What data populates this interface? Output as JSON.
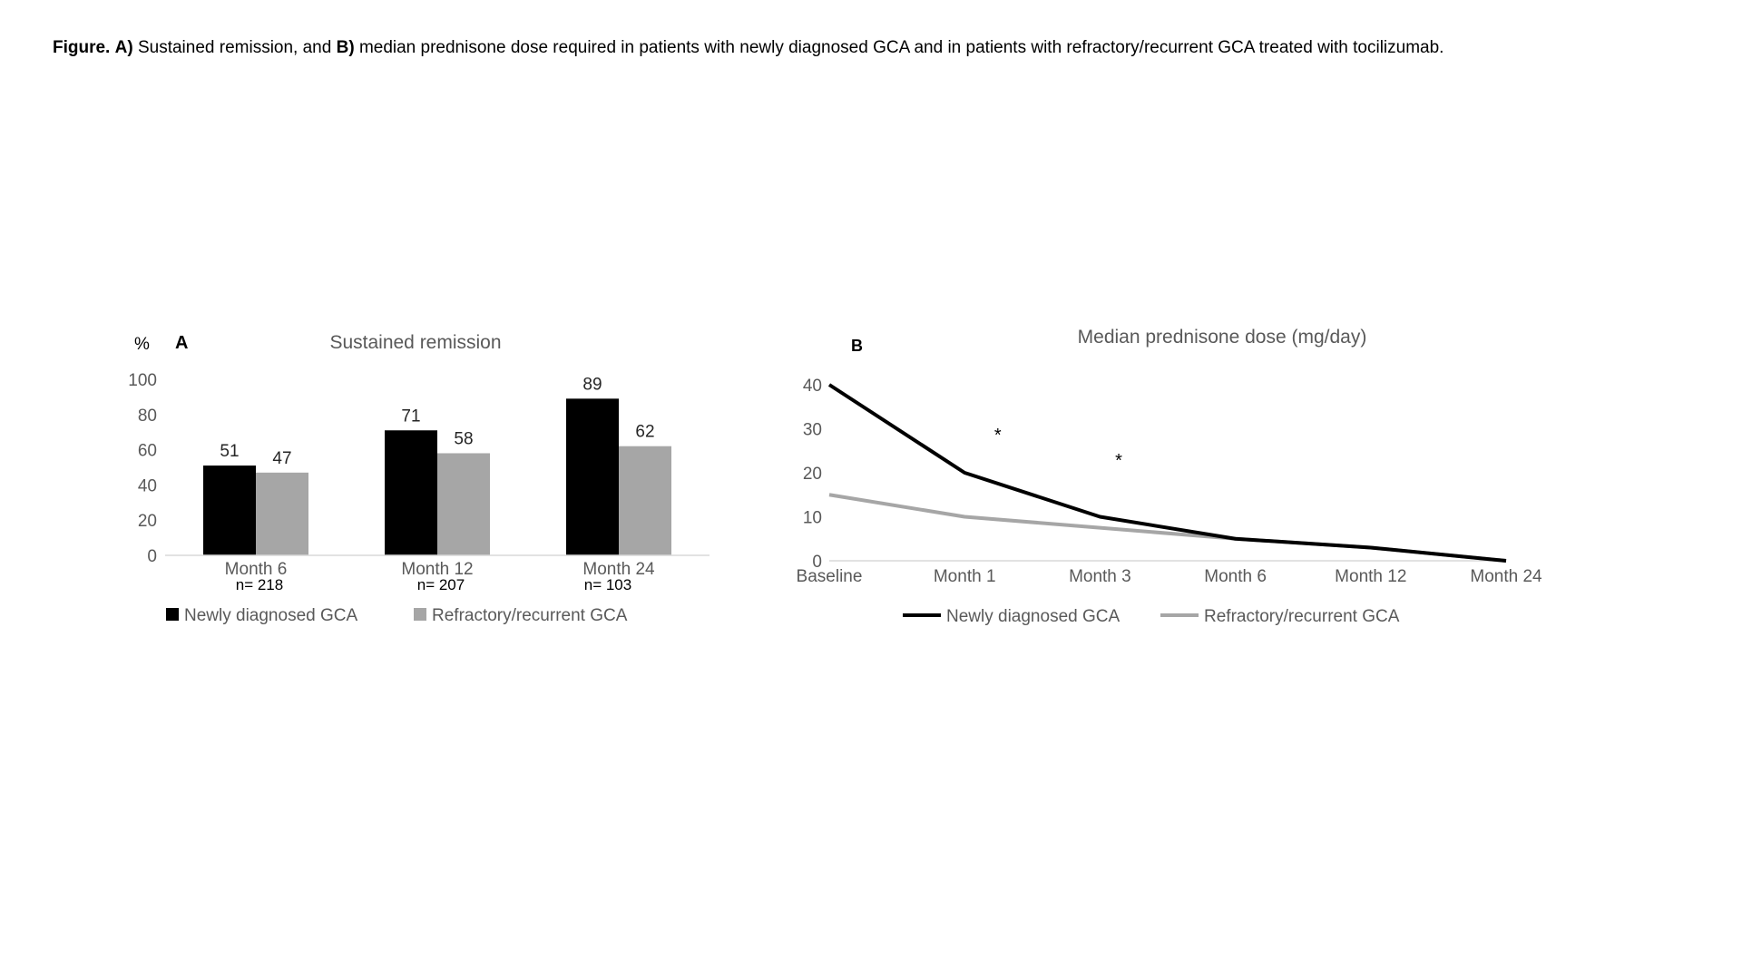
{
  "caption": {
    "label": "Figure.",
    "a_label": "A)",
    "part_a": "Sustained remission, and",
    "b_label": "B)",
    "part_b": "median prednisone dose required in patients with newly diagnosed GCA and in patients with refractory/recurrent GCA treated with tocilizumab."
  },
  "colors": {
    "newly": "#000000",
    "refractory": "#a6a6a6",
    "axis": "#d9d9d9",
    "text": "#595959"
  },
  "chart_data": [
    {
      "type": "bar",
      "panel_label": "A",
      "title": "Sustained remission",
      "ylabel": "%",
      "ylim": [
        0,
        100
      ],
      "yticks": [
        0,
        20,
        40,
        60,
        80,
        100
      ],
      "categories": [
        "Month 6",
        "Month 12",
        "Month 24"
      ],
      "sample_sizes": [
        "n= 218",
        "n= 207",
        "n= 103"
      ],
      "series": [
        {
          "name": "Newly diagnosed GCA",
          "values": [
            51,
            71,
            89
          ]
        },
        {
          "name": "Refractory/recurrent GCA",
          "values": [
            47,
            58,
            62
          ]
        }
      ],
      "legend": "bottom",
      "grid": false
    },
    {
      "type": "line",
      "panel_label": "B",
      "title": "Median prednisone dose (mg/day)",
      "ylim": [
        0,
        40
      ],
      "yticks": [
        0,
        10,
        20,
        30,
        40
      ],
      "categories": [
        "Baseline",
        "Month 1",
        "Month 3",
        "Month 6",
        "Month 12",
        "Month 24"
      ],
      "series": [
        {
          "name": "Newly diagnosed GCA",
          "values": [
            40,
            20,
            10,
            5,
            3,
            0
          ]
        },
        {
          "name": "Refractory/recurrent GCA",
          "values": [
            15,
            10,
            7.5,
            5,
            3,
            0
          ]
        }
      ],
      "annotations": [
        "*",
        "*"
      ],
      "legend": "bottom",
      "grid": false
    }
  ]
}
